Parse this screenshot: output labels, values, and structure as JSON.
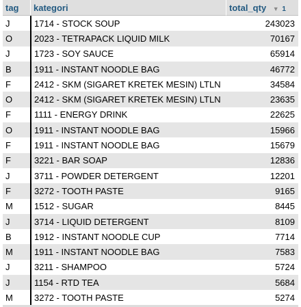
{
  "columns": {
    "tag": "tag",
    "kategori": "kategori",
    "total_qty": "total_qty",
    "sort_indicator": "▼",
    "sort_order": "1"
  },
  "rows": [
    {
      "tag": "J",
      "kategori": "1714 - STOCK SOUP",
      "total_qty": "243023"
    },
    {
      "tag": "O",
      "kategori": "2023 - TETRAPACK LIQUID MILK",
      "total_qty": "70167"
    },
    {
      "tag": "J",
      "kategori": "1723 - SOY SAUCE",
      "total_qty": "65914"
    },
    {
      "tag": "B",
      "kategori": "1911 - INSTANT NOODLE BAG",
      "total_qty": "46772"
    },
    {
      "tag": "F",
      "kategori": "2412 - SKM (SIGARET KRETEK MESIN) LTLN",
      "total_qty": "34584"
    },
    {
      "tag": "O",
      "kategori": "2412 - SKM (SIGARET KRETEK MESIN) LTLN",
      "total_qty": "23635"
    },
    {
      "tag": "F",
      "kategori": "1111 - ENERGY DRINK",
      "total_qty": "22625"
    },
    {
      "tag": "O",
      "kategori": "1911 - INSTANT NOODLE BAG",
      "total_qty": "15966"
    },
    {
      "tag": "F",
      "kategori": "1911 - INSTANT NOODLE BAG",
      "total_qty": "15679"
    },
    {
      "tag": "F",
      "kategori": "3221 - BAR SOAP",
      "total_qty": "12836"
    },
    {
      "tag": "J",
      "kategori": "3711 - POWDER DETERGENT",
      "total_qty": "12201"
    },
    {
      "tag": "F",
      "kategori": "3272 - TOOTH PASTE",
      "total_qty": "9165"
    },
    {
      "tag": "M",
      "kategori": "1512 - SUGAR",
      "total_qty": "8445"
    },
    {
      "tag": "J",
      "kategori": "3714 - LIQUID DETERGENT",
      "total_qty": "8109"
    },
    {
      "tag": "B",
      "kategori": "1912 - INSTANT NOODLE CUP",
      "total_qty": "7714"
    },
    {
      "tag": "M",
      "kategori": "1911 - INSTANT NOODLE BAG",
      "total_qty": "7583"
    },
    {
      "tag": "J",
      "kategori": "3211 - SHAMPOO",
      "total_qty": "5724"
    },
    {
      "tag": "J",
      "kategori": "1154 - RTD TEA",
      "total_qty": "5684"
    },
    {
      "tag": "M",
      "kategori": "3272 - TOOTH PASTE",
      "total_qty": "5274"
    }
  ]
}
